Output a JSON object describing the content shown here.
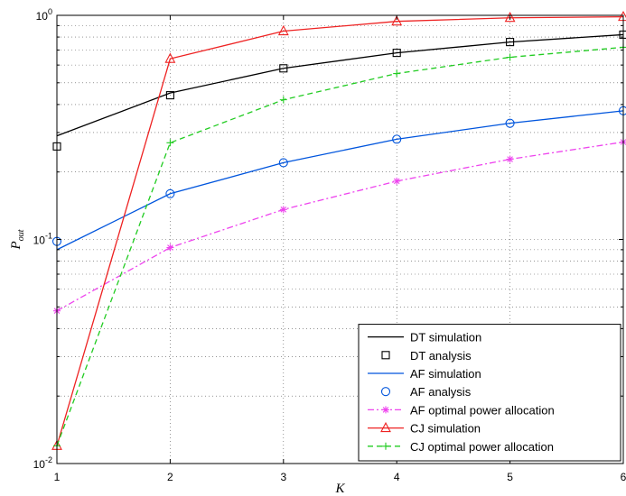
{
  "chart_data": {
    "type": "line",
    "xlabel": "K",
    "ylabel": "P",
    "ylabel_sub": "out",
    "x_scale": "linear",
    "y_scale": "log",
    "xlim": [
      1,
      6
    ],
    "ylim": [
      0.01,
      1
    ],
    "x_ticks": [
      "1",
      "2",
      "3",
      "4",
      "5",
      "6"
    ],
    "y_tick_labels": [
      {
        "value": 0.01,
        "base": "10",
        "exp": "-2"
      },
      {
        "value": 0.1,
        "base": "10",
        "exp": "-1"
      },
      {
        "value": 1,
        "base": "10",
        "exp": "0"
      }
    ],
    "grid": true,
    "legend_position": "bottom-right",
    "x": [
      1,
      2,
      3,
      4,
      5,
      6
    ],
    "series": [
      {
        "name": "DT simulation",
        "color": "#000000",
        "line": "solid",
        "marker": "none",
        "values": [
          0.29,
          0.45,
          0.58,
          0.68,
          0.76,
          0.82
        ]
      },
      {
        "name": "DT analysis",
        "color": "#000000",
        "line": "none",
        "marker": "square",
        "values": [
          0.26,
          0.44,
          0.58,
          0.68,
          0.76,
          0.82
        ]
      },
      {
        "name": "AF simulation",
        "color": "#0055dd",
        "line": "solid",
        "marker": "none",
        "values": [
          0.09,
          0.16,
          0.22,
          0.28,
          0.33,
          0.375
        ]
      },
      {
        "name": "AF analysis",
        "color": "#0055dd",
        "line": "none",
        "marker": "circle",
        "values": [
          0.098,
          0.16,
          0.22,
          0.28,
          0.33,
          0.375
        ]
      },
      {
        "name": "AF optimal power allocation",
        "color": "#ee44ee",
        "line": "dashdot",
        "marker": "star",
        "values": [
          0.048,
          0.092,
          0.136,
          0.182,
          0.228,
          0.272
        ]
      },
      {
        "name": "CJ simulation",
        "color": "#ee2222",
        "line": "solid",
        "marker": "triangle",
        "values": [
          0.012,
          0.64,
          0.85,
          0.94,
          0.975,
          0.985
        ]
      },
      {
        "name": "CJ optimal power allocation",
        "color": "#22cc22",
        "line": "dashed",
        "marker": "plus",
        "values": [
          0.012,
          0.27,
          0.42,
          0.55,
          0.65,
          0.72
        ]
      }
    ]
  }
}
